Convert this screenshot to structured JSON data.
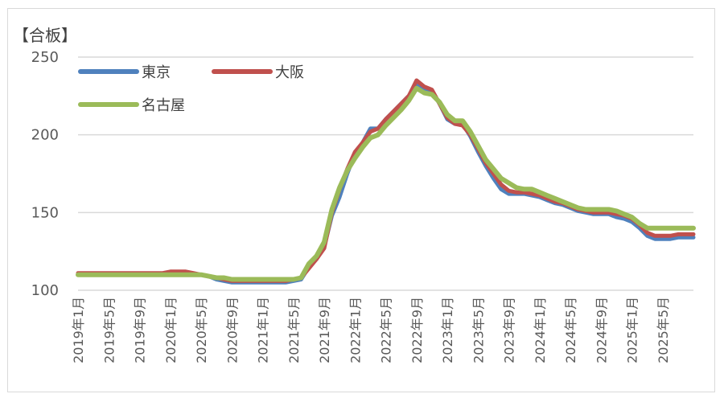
{
  "chart_data": {
    "type": "line",
    "unit_label": "【合板】",
    "ylim": [
      100,
      250
    ],
    "yticks": [
      100,
      150,
      200,
      250
    ],
    "grid": true,
    "legend_placement": "top-left",
    "x_tick_labels": [
      "2019年1月",
      "2019年5月",
      "2019年9月",
      "2020年1月",
      "2020年5月",
      "2020年9月",
      "2021年1月",
      "2021年5月",
      "2021年9月",
      "2022年1月",
      "2022年5月",
      "2022年9月",
      "2023年1月",
      "2023年5月",
      "2023年9月",
      "2024年1月",
      "2024年5月",
      "2024年9月",
      "2025年1月",
      "2025年5月"
    ],
    "series": [
      {
        "name": "東京",
        "color": "#4f81bd",
        "values": [
          110,
          110,
          110,
          110,
          110,
          110,
          110,
          110,
          110,
          110,
          110,
          110,
          111,
          111,
          111,
          110,
          110,
          109,
          107,
          106,
          105,
          105,
          105,
          105,
          105,
          105,
          105,
          105,
          106,
          107,
          115,
          120,
          128,
          148,
          160,
          175,
          188,
          195,
          204,
          204,
          210,
          215,
          220,
          225,
          233,
          230,
          228,
          220,
          210,
          207,
          207,
          199,
          189,
          180,
          172,
          165,
          162,
          162,
          162,
          161,
          160,
          158,
          156,
          155,
          153,
          151,
          150,
          149,
          149,
          149,
          147,
          146,
          144,
          140,
          135,
          133,
          133,
          133,
          134,
          134,
          134
        ]
      },
      {
        "name": "大阪",
        "color": "#c0504d",
        "values": [
          111,
          111,
          111,
          111,
          111,
          111,
          111,
          111,
          111,
          111,
          111,
          111,
          112,
          112,
          112,
          111,
          110,
          109,
          108,
          107,
          106,
          106,
          106,
          106,
          106,
          106,
          106,
          106,
          107,
          108,
          114,
          120,
          127,
          150,
          165,
          178,
          189,
          195,
          202,
          204,
          210,
          215,
          220,
          225,
          235,
          231,
          229,
          220,
          211,
          207,
          206,
          200,
          191,
          182,
          175,
          168,
          164,
          163,
          163,
          162,
          161,
          159,
          157,
          156,
          154,
          152,
          151,
          150,
          150,
          150,
          149,
          148,
          146,
          142,
          137,
          135,
          135,
          135,
          136,
          136,
          136
        ]
      },
      {
        "name": "名古屋",
        "color": "#9bbb59",
        "values": [
          110,
          110,
          110,
          110,
          110,
          110,
          110,
          110,
          110,
          110,
          110,
          110,
          110,
          110,
          110,
          110,
          110,
          109,
          108,
          108,
          107,
          107,
          107,
          107,
          107,
          107,
          107,
          107,
          107,
          108,
          117,
          122,
          131,
          152,
          166,
          177,
          185,
          192,
          198,
          200,
          206,
          211,
          216,
          222,
          230,
          227,
          226,
          221,
          213,
          209,
          209,
          202,
          193,
          184,
          178,
          172,
          169,
          166,
          165,
          165,
          163,
          161,
          159,
          157,
          155,
          153,
          152,
          152,
          152,
          152,
          151,
          149,
          147,
          143,
          140,
          140,
          140,
          140,
          140,
          140,
          140
        ]
      }
    ]
  }
}
